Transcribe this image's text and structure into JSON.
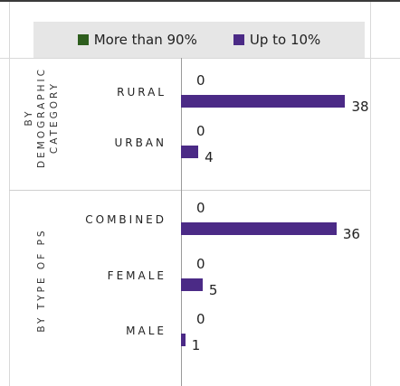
{
  "legend": {
    "more_than_90": {
      "label": "More than 90%",
      "color": "#2e5e1e"
    },
    "up_to_10": {
      "label": "Up to 10%",
      "color": "#4b2a86"
    }
  },
  "chart_data": {
    "type": "bar",
    "orientation": "horizontal",
    "series": [
      {
        "name": "More than 90%",
        "values": [
          0,
          0,
          0,
          0,
          0
        ]
      },
      {
        "name": "Up to 10%",
        "values": [
          38,
          4,
          36,
          5,
          1
        ]
      }
    ],
    "groups": [
      {
        "label": "BY\nDEMOGRAPHIC\nCATEGORY",
        "categories": [
          "RURAL",
          "URBAN"
        ]
      },
      {
        "label": "BY TYPE OF PS",
        "categories": [
          "COMBINED",
          "FEMALE",
          "MALE"
        ]
      }
    ],
    "categories": [
      "RURAL",
      "URBAN",
      "COMBINED",
      "FEMALE",
      "MALE"
    ],
    "xlim": [
      0,
      40
    ],
    "grid": false,
    "legend_position": "top"
  }
}
